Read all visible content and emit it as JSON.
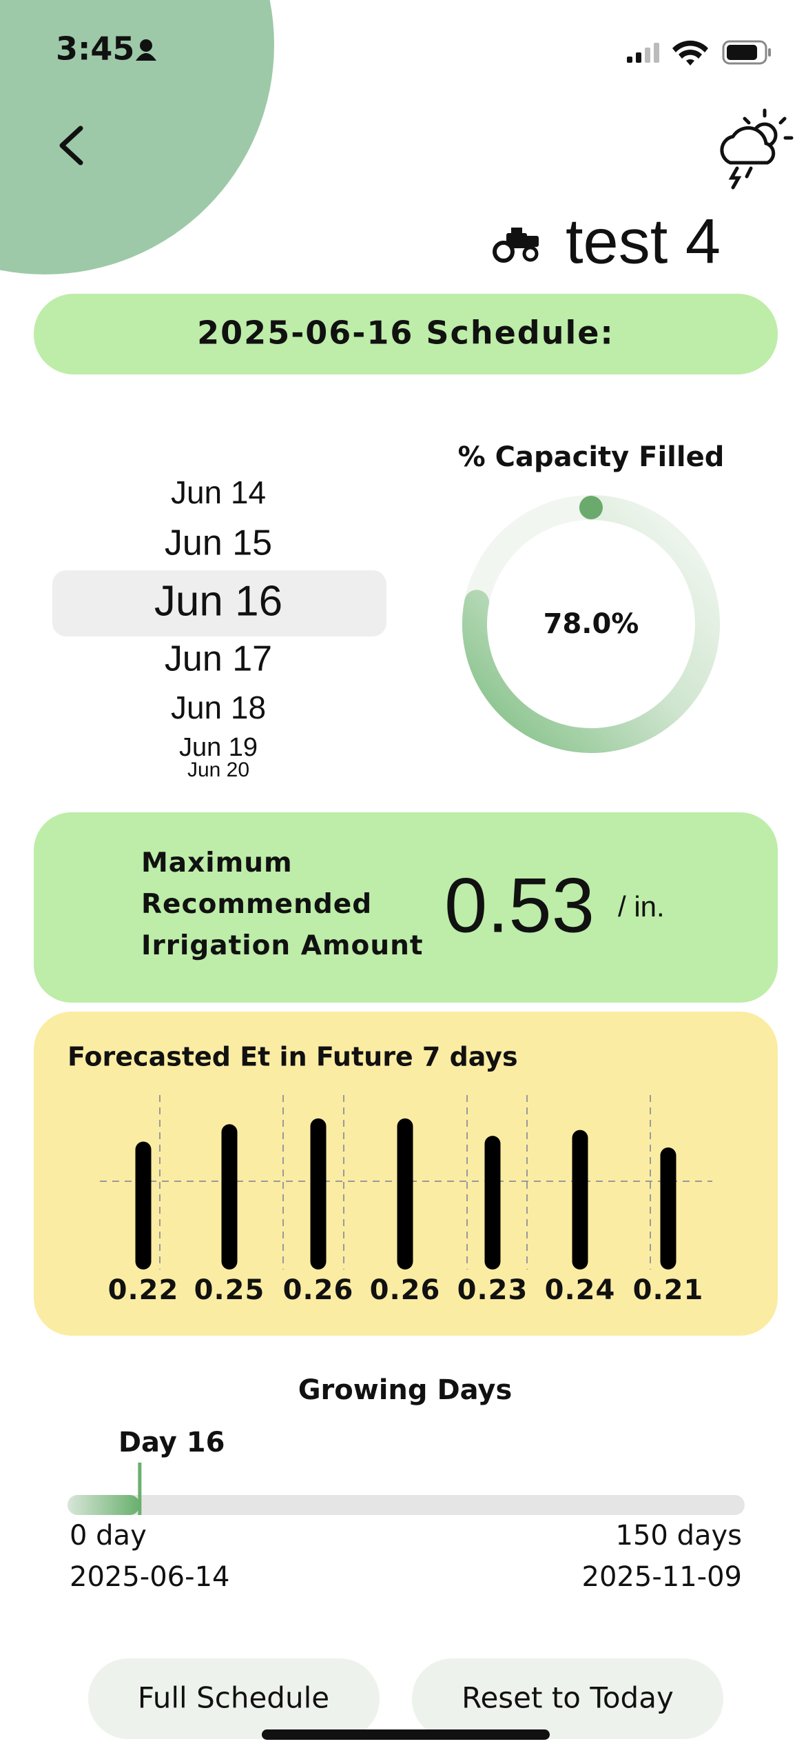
{
  "status_bar": {
    "time": "3:45"
  },
  "header": {
    "title": "test 4"
  },
  "schedule_banner": "2025-06-16 Schedule:",
  "date_picker": {
    "items": [
      "Jun 14",
      "Jun 15",
      "Jun 16",
      "Jun 17",
      "Jun 18",
      "Jun 19",
      "Jun 20"
    ],
    "selected": 2
  },
  "capacity": {
    "title": "% Capacity Filled",
    "value": 78.0,
    "label": "78.0%"
  },
  "recommendation": {
    "label": "Maximum Recommended Irrigation Amount",
    "value": "0.53",
    "unit": "/ in."
  },
  "forecast": {
    "title": "Forecasted Et in Future 7 days",
    "values": [
      0.22,
      0.25,
      0.26,
      0.26,
      0.23,
      0.24,
      0.21
    ]
  },
  "growing_days": {
    "title": "Growing Days",
    "current": {
      "value": 16,
      "label": "Day 16"
    },
    "start": {
      "value": 0,
      "label": "0 day"
    },
    "end": {
      "value": 150,
      "label": "150 days"
    },
    "start_date": "2025-06-14",
    "end_date": "2025-11-09"
  },
  "buttons": [
    "Full Schedule",
    "Reset to Today"
  ]
}
